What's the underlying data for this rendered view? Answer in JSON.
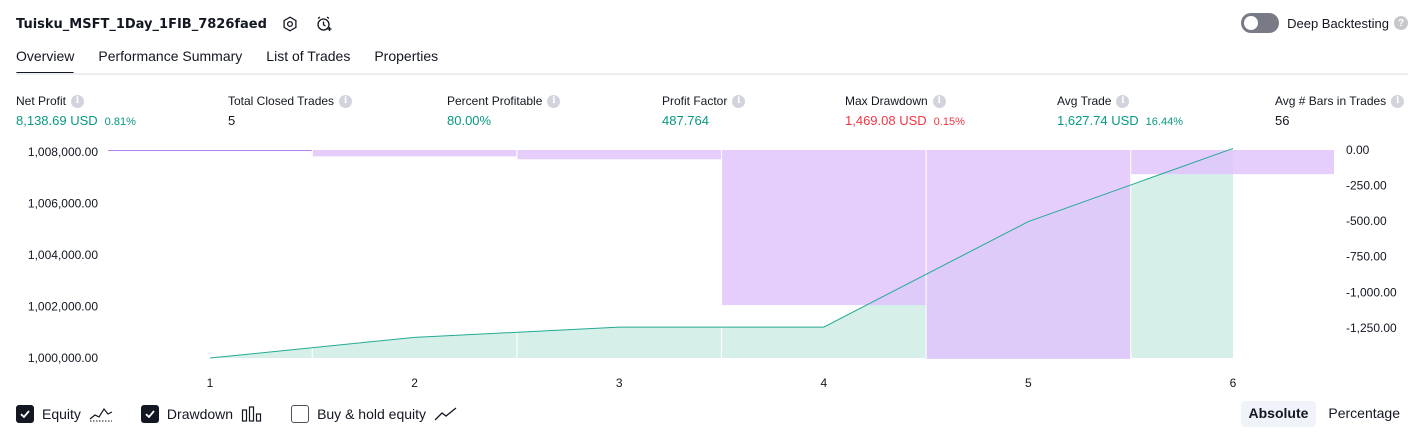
{
  "header": {
    "title": "Tuisku_MSFT_1Day_1FIB_7826faed",
    "deep_backtesting_label": "Deep Backtesting",
    "deep_backtesting_enabled": false
  },
  "tabs": [
    {
      "label": "Overview",
      "active": true
    },
    {
      "label": "Performance Summary",
      "active": false
    },
    {
      "label": "List of Trades",
      "active": false
    },
    {
      "label": "Properties",
      "active": false
    }
  ],
  "metrics": {
    "net_profit": {
      "label": "Net Profit",
      "value": "8,138.69 USD",
      "pct": "0.81%"
    },
    "total_closed_trades": {
      "label": "Total Closed Trades",
      "value": "5"
    },
    "percent_profitable": {
      "label": "Percent Profitable",
      "value": "80.00%"
    },
    "profit_factor": {
      "label": "Profit Factor",
      "value": "487.764"
    },
    "max_drawdown": {
      "label": "Max Drawdown",
      "value": "1,469.08 USD",
      "pct": "0.15%"
    },
    "avg_trade": {
      "label": "Avg Trade",
      "value": "1,627.74 USD",
      "pct": "16.44%"
    },
    "avg_bars": {
      "label": "Avg # Bars in Trades",
      "value": "56"
    }
  },
  "chart_data": {
    "type": "line",
    "x": [
      1,
      2,
      3,
      4,
      5,
      6
    ],
    "equity": {
      "values": [
        1000000,
        1000800,
        1001200,
        1001200,
        1005300,
        1008139
      ],
      "left_ylim": [
        1000000,
        1008000
      ],
      "left_ticks": [
        "1,000,000.00",
        "1,002,000.00",
        "1,004,000.00",
        "1,006,000.00",
        "1,008,000.00"
      ]
    },
    "drawdown": {
      "bars": [
        {
          "from": 0.5,
          "to": 1.5,
          "value": 0
        },
        {
          "from": 1.5,
          "to": 2.5,
          "value": -45
        },
        {
          "from": 2.5,
          "to": 3.5,
          "value": -65
        },
        {
          "from": 3.5,
          "to": 4.5,
          "value": -1090
        },
        {
          "from": 4.5,
          "to": 5.5,
          "value": -1469.08
        },
        {
          "from": 5.5,
          "to": 6.5,
          "value": -170
        }
      ],
      "right_ylim": [
        -1469.08,
        0
      ],
      "right_ticks": [
        "0.00",
        "-250.00",
        "-500.00",
        "-750.00",
        "-1,000.00",
        "-1,250.00"
      ]
    },
    "x_ticks": [
      "1",
      "2",
      "3",
      "4",
      "5",
      "6"
    ],
    "colors": {
      "equity_line": "#22ab94",
      "equity_fill": "#d7efe9",
      "drawdown_fill": "#e1c4fb",
      "overlap_fill": "#b2b5e6",
      "drawdown_line": "#b880ea"
    }
  },
  "legend": [
    {
      "label": "Equity",
      "checked": true,
      "icon": "equity-line-icon"
    },
    {
      "label": "Drawdown",
      "checked": true,
      "icon": "drawdown-bars-icon"
    },
    {
      "label": "Buy & hold equity",
      "checked": false,
      "icon": "buy-hold-line-icon"
    }
  ],
  "scale_switch": {
    "absolute_label": "Absolute",
    "percentage_label": "Percentage",
    "selected": "Absolute"
  }
}
